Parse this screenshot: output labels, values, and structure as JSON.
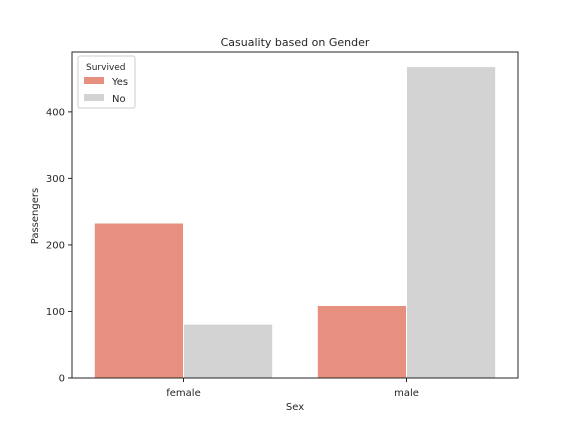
{
  "chart_data": {
    "type": "bar",
    "title": "Casuality based on Gender",
    "xlabel": "Sex",
    "ylabel": "Passengers",
    "categories": [
      "female",
      "male"
    ],
    "series": [
      {
        "name": "Yes",
        "values": [
          233,
          109
        ],
        "color": "#e8907f"
      },
      {
        "name": "No",
        "values": [
          81,
          468
        ],
        "color": "#d3d3d3"
      }
    ],
    "legend": {
      "title": "Survived",
      "position": "top-left"
    },
    "ylim": [
      0,
      490
    ],
    "yticks": [
      0,
      100,
      200,
      300,
      400
    ],
    "grid": false
  }
}
